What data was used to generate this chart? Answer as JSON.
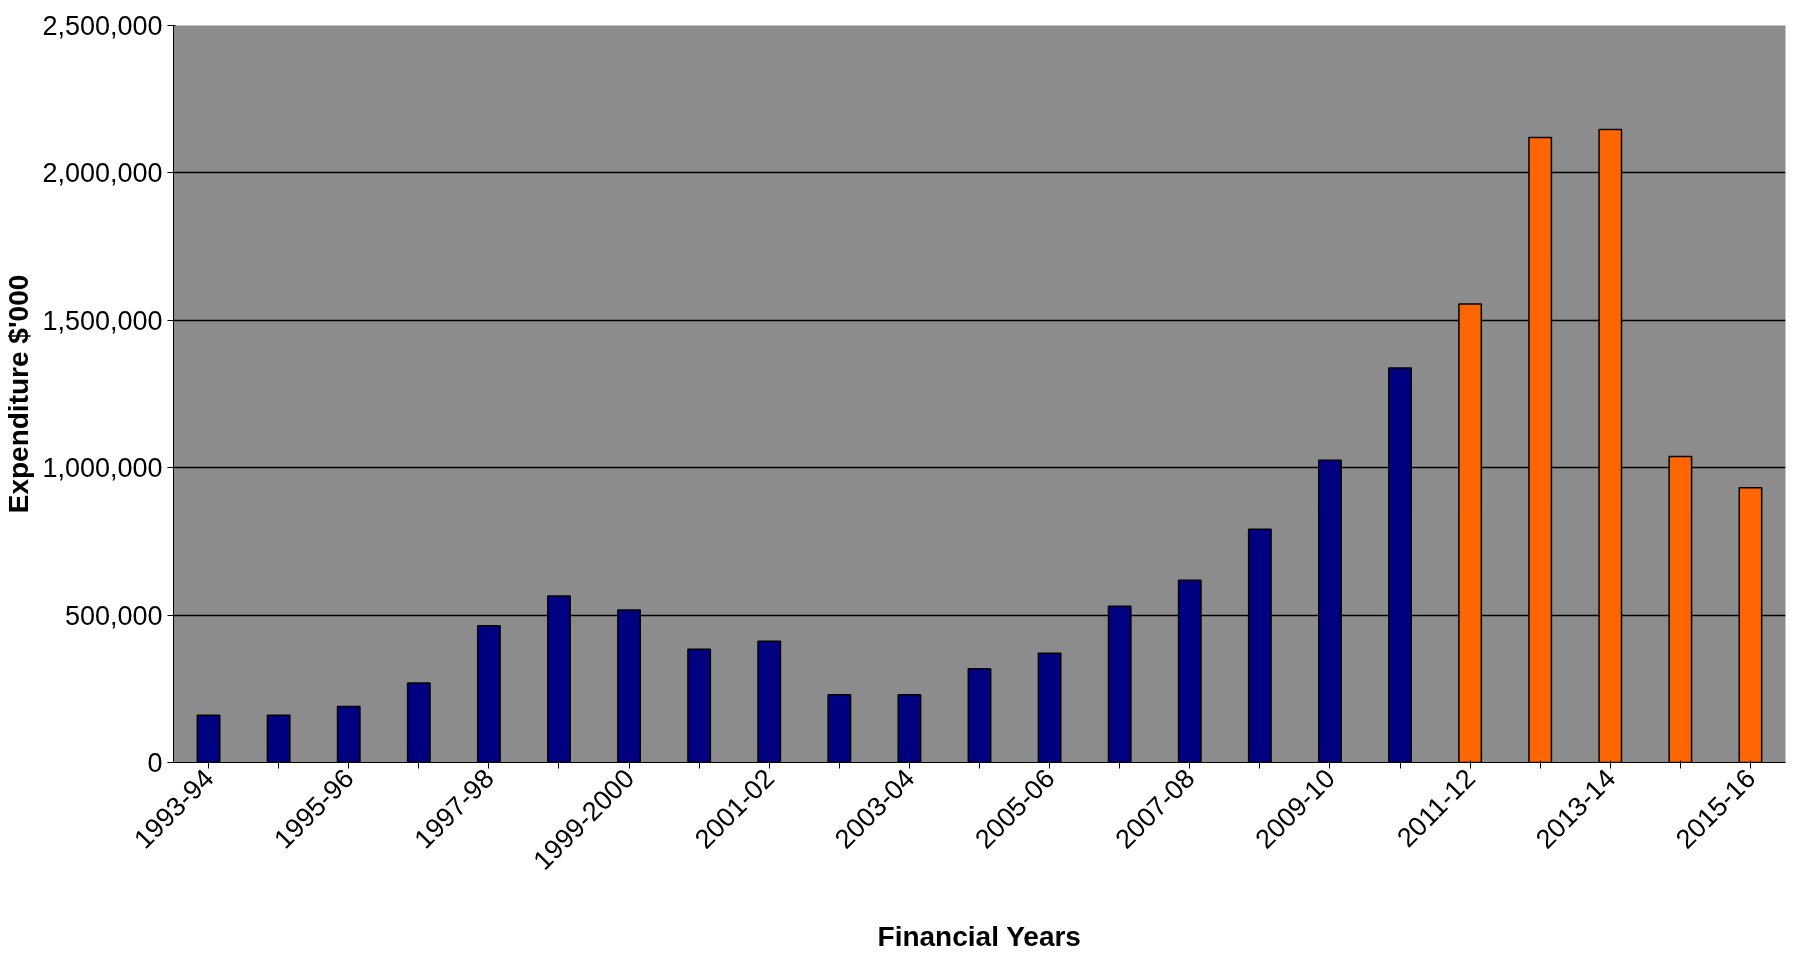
{
  "chart_data": {
    "type": "bar",
    "xlabel": "Financial Years",
    "ylabel": "Expenditure $'000",
    "categories": [
      "1993-94",
      null,
      "1995-96",
      null,
      "1997-98",
      null,
      "1999-2000",
      null,
      "2001-02",
      null,
      "2003-04",
      null,
      "2005-06",
      null,
      "2007-08",
      null,
      "2009-10",
      null,
      "2011-12",
      null,
      "2013-14",
      null,
      "2015-16"
    ],
    "values": [
      160000,
      160000,
      190000,
      270000,
      464000,
      565000,
      517000,
      384000,
      411000,
      230000,
      230000,
      318000,
      371000,
      530000,
      618000,
      791000,
      1025000,
      1338000,
      1555000,
      2120000,
      2147000,
      1038000,
      932000
    ],
    "colors": [
      "#000080",
      "#000080",
      "#000080",
      "#000080",
      "#000080",
      "#000080",
      "#000080",
      "#000080",
      "#000080",
      "#000080",
      "#000080",
      "#000080",
      "#000080",
      "#000080",
      "#000080",
      "#000080",
      "#000080",
      "#000080",
      "#ff6600",
      "#ff6600",
      "#ff6600",
      "#ff6600",
      "#ff6600"
    ],
    "ylim": [
      0,
      2500000
    ],
    "yticks": [
      0,
      {
        "value": 500000,
        "label": "500,000"
      },
      {
        "value": 1000000,
        "label": "1,000,000"
      },
      {
        "value": 1500000,
        "label": "1,500,000"
      },
      {
        "value": 2000000,
        "label": "2,000,000"
      },
      {
        "value": 2500000,
        "label": "2,500,000"
      }
    ],
    "grid": "y"
  }
}
